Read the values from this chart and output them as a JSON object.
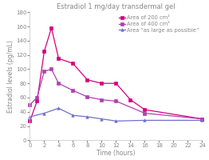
{
  "title": "Estradiol 1 mg/day transdermal gel",
  "xlabel": "Time (hours)",
  "ylabel": "Estradiol levels (pg/mL)",
  "time_points": [
    0,
    1,
    2,
    3,
    4,
    6,
    8,
    10,
    12,
    14,
    16,
    18,
    20,
    22,
    24
  ],
  "series": [
    {
      "label": "Area of 200 cm²",
      "color": "#d4007f",
      "marker": "s",
      "values": [
        27,
        55,
        125,
        158,
        115,
        108,
        85,
        80,
        80,
        57,
        43,
        null,
        null,
        null,
        30
      ]
    },
    {
      "label": "Area of 400 cm²",
      "color": "#b040b0",
      "marker": "s",
      "values": [
        50,
        60,
        97,
        100,
        80,
        70,
        61,
        57,
        55,
        null,
        38,
        null,
        null,
        null,
        30
      ]
    },
    {
      "label": "Area “as large as possible”",
      "color": "#7070cc",
      "marker": "^",
      "values": [
        33,
        null,
        38,
        null,
        45,
        35,
        33,
        30,
        27,
        null,
        28,
        null,
        null,
        null,
        28
      ]
    }
  ],
  "ylim": [
    0,
    180
  ],
  "yticks": [
    0,
    20,
    40,
    60,
    80,
    100,
    120,
    140,
    160,
    180
  ],
  "xticks": [
    0,
    2,
    4,
    6,
    8,
    10,
    12,
    14,
    16,
    18,
    20,
    22,
    24
  ],
  "background_color": "#ffffff",
  "plot_bg_color": "#ffffff",
  "legend_fontsize": 4.8,
  "title_fontsize": 6.0,
  "axis_label_fontsize": 5.5,
  "tick_fontsize": 5.0,
  "title_color": "#888888",
  "label_color": "#888888",
  "tick_color": "#888888",
  "spine_color": "#cccccc",
  "marker_size": 2.5,
  "line_width": 0.9
}
